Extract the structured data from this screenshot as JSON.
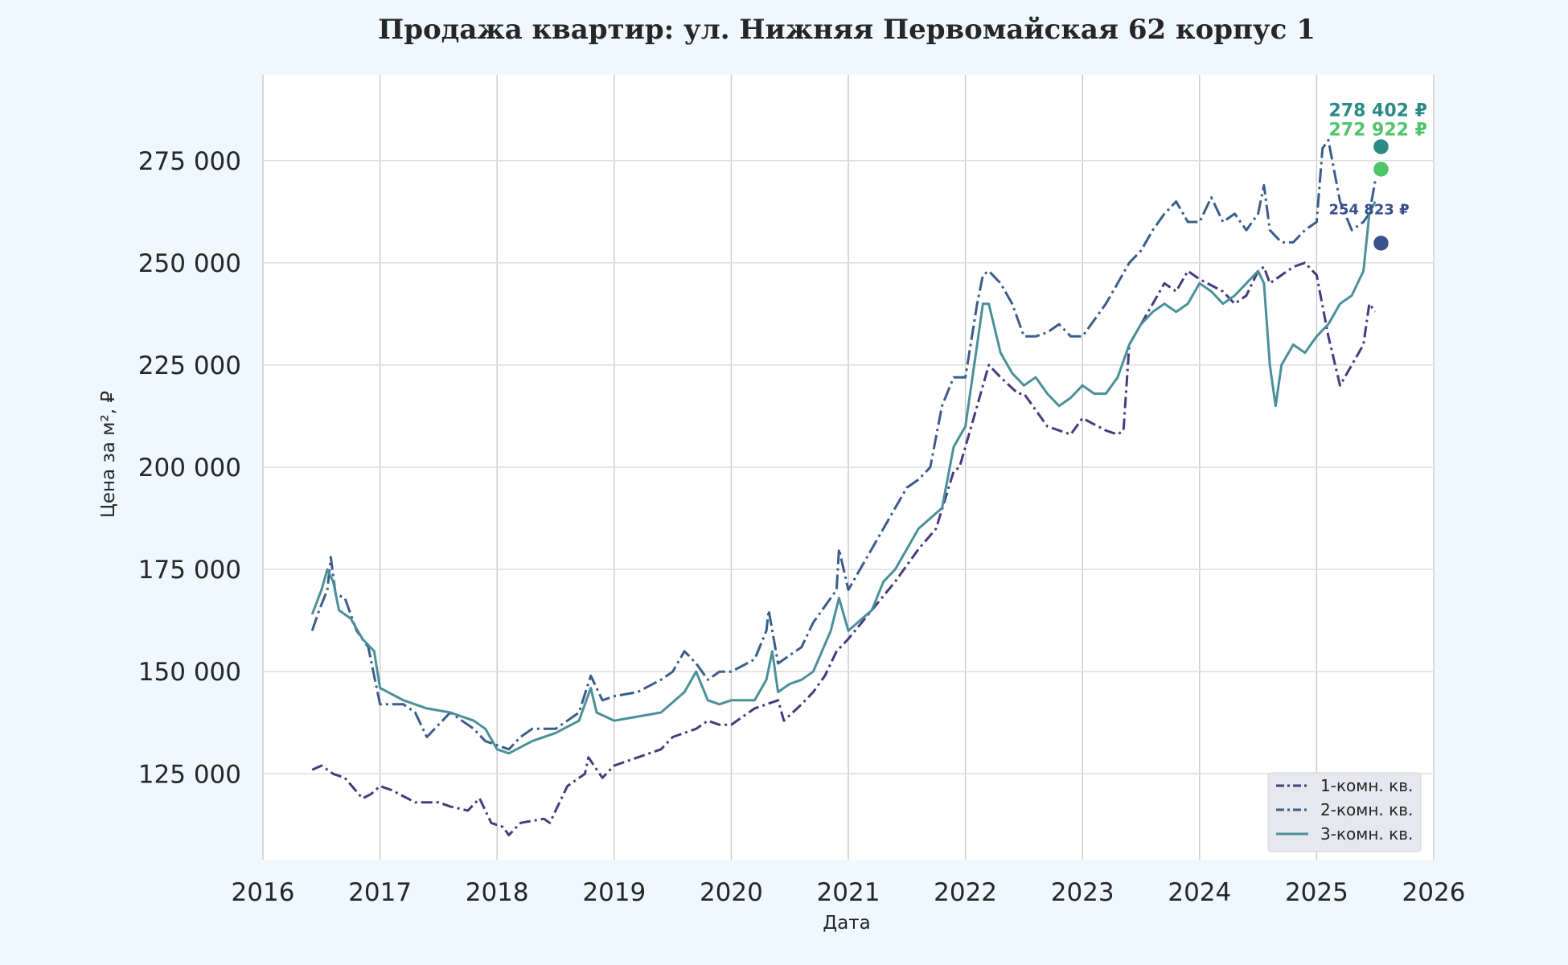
{
  "chart_data": {
    "type": "line",
    "title": "Продажа квартир: ул. Нижняя Первомайская 62 корпус 1",
    "xlabel": "Дата",
    "ylabel": "Цена за м², ₽",
    "xlim": [
      2016.0,
      2026.0
    ],
    "ylim": [
      104000,
      296000
    ],
    "xticks": [
      "2016",
      "2017",
      "2018",
      "2019",
      "2020",
      "2021",
      "2022",
      "2023",
      "2024",
      "2025",
      "2026"
    ],
    "yticks": [
      "125 000",
      "150 000",
      "175 000",
      "200 000",
      "225 000",
      "250 000",
      "275 000"
    ],
    "ytick_values": [
      125000,
      150000,
      175000,
      200000,
      225000,
      250000,
      275000
    ],
    "grid": true,
    "legend_position": "lower-right",
    "series": [
      {
        "name": "1-комн. кв.",
        "color": "#473a7e",
        "dash": "dashdot",
        "x": [
          2016.42,
          2016.5,
          2016.6,
          2016.7,
          2016.85,
          2016.92,
          2017.0,
          2017.1,
          2017.3,
          2017.5,
          2017.6,
          2017.75,
          2017.85,
          2017.95,
          2018.05,
          2018.1,
          2018.2,
          2018.4,
          2018.45,
          2018.5,
          2018.6,
          2018.75,
          2018.78,
          2018.9,
          2019.0,
          2019.2,
          2019.4,
          2019.5,
          2019.6,
          2019.7,
          2019.8,
          2019.9,
          2020.0,
          2020.2,
          2020.4,
          2020.45,
          2020.6,
          2020.7,
          2020.8,
          2020.9,
          2021.0,
          2021.2,
          2021.4,
          2021.6,
          2021.75,
          2021.9,
          2021.95,
          2022.0,
          2022.1,
          2022.2,
          2022.3,
          2022.45,
          2022.5,
          2022.6,
          2022.7,
          2022.9,
          2023.0,
          2023.2,
          2023.3,
          2023.35,
          2023.4,
          2023.5,
          2023.6,
          2023.7,
          2023.8,
          2023.9,
          2024.0,
          2024.2,
          2024.3,
          2024.4,
          2024.5,
          2024.55,
          2024.6,
          2024.7,
          2024.8,
          2024.9,
          2025.0,
          2025.1,
          2025.2,
          2025.3,
          2025.4,
          2025.45,
          2025.5
        ],
        "y": [
          126000,
          127000,
          125000,
          124000,
          119000,
          120000,
          122000,
          121000,
          118000,
          118000,
          117000,
          116000,
          119000,
          113000,
          112000,
          110000,
          113000,
          114000,
          113000,
          116000,
          122000,
          125000,
          129000,
          124000,
          127000,
          129000,
          131000,
          134000,
          135000,
          136000,
          138000,
          137000,
          137000,
          141000,
          143000,
          138000,
          142000,
          145000,
          149000,
          155000,
          158000,
          165000,
          172000,
          180000,
          185000,
          199000,
          200000,
          205000,
          215000,
          225000,
          222000,
          218000,
          218000,
          214000,
          210000,
          208000,
          212000,
          209000,
          208000,
          209000,
          230000,
          235000,
          240000,
          245000,
          243000,
          248000,
          246000,
          243000,
          240000,
          242000,
          248000,
          249000,
          245000,
          247000,
          249000,
          250000,
          247000,
          232000,
          220000,
          225000,
          230000,
          240000,
          238000
        ],
        "last_value": 254823,
        "last_label": "254 823 ₽"
      },
      {
        "name": "2-комн. кв.",
        "color": "#3a5d8a",
        "dash": "dashdotdiamond",
        "x": [
          2016.42,
          2016.48,
          2016.55,
          2016.58,
          2016.62,
          2016.7,
          2016.8,
          2016.9,
          2017.0,
          2017.2,
          2017.3,
          2017.4,
          2017.6,
          2017.7,
          2017.8,
          2017.9,
          2018.0,
          2018.1,
          2018.2,
          2018.3,
          2018.5,
          2018.6,
          2018.7,
          2018.8,
          2018.9,
          2019.0,
          2019.2,
          2019.4,
          2019.5,
          2019.6,
          2019.7,
          2019.8,
          2019.9,
          2020.0,
          2020.2,
          2020.3,
          2020.32,
          2020.4,
          2020.5,
          2020.6,
          2020.7,
          2020.8,
          2020.9,
          2020.92,
          2021.0,
          2021.2,
          2021.4,
          2021.5,
          2021.6,
          2021.7,
          2021.8,
          2021.9,
          2022.0,
          2022.1,
          2022.15,
          2022.2,
          2022.3,
          2022.4,
          2022.5,
          2022.6,
          2022.7,
          2022.8,
          2022.9,
          2023.0,
          2023.1,
          2023.2,
          2023.3,
          2023.4,
          2023.5,
          2023.6,
          2023.7,
          2023.8,
          2023.9,
          2024.0,
          2024.1,
          2024.2,
          2024.3,
          2024.4,
          2024.5,
          2024.55,
          2024.6,
          2024.7,
          2024.8,
          2024.9,
          2025.0,
          2025.05,
          2025.1,
          2025.2,
          2025.3,
          2025.4,
          2025.45,
          2025.5
        ],
        "y": [
          160000,
          165000,
          170000,
          178000,
          169000,
          168000,
          160000,
          156000,
          142000,
          142000,
          140000,
          134000,
          140000,
          138000,
          136000,
          133000,
          132000,
          131000,
          134000,
          136000,
          136000,
          138000,
          140000,
          149000,
          143000,
          144000,
          145000,
          148000,
          150000,
          155000,
          152000,
          148000,
          150000,
          150000,
          153000,
          160000,
          165000,
          152000,
          154000,
          156000,
          162000,
          166000,
          170000,
          180000,
          170000,
          180000,
          190000,
          195000,
          197000,
          200000,
          215000,
          222000,
          222000,
          240000,
          247000,
          248000,
          245000,
          240000,
          232000,
          232000,
          233000,
          235000,
          232000,
          232000,
          236000,
          240000,
          245000,
          250000,
          253000,
          258000,
          262000,
          265000,
          260000,
          260000,
          266000,
          260000,
          262000,
          258000,
          262000,
          269000,
          258000,
          255000,
          255000,
          258000,
          260000,
          278000,
          280000,
          265000,
          258000,
          260000,
          262000,
          270000
        ],
        "last_value": 278402,
        "last_label": "278 402 ₽"
      },
      {
        "name": "3-комн. кв.",
        "color": "#4a9099",
        "dash": "solid",
        "x": [
          2016.42,
          2016.5,
          2016.55,
          2016.6,
          2016.65,
          2016.75,
          2016.85,
          2016.95,
          2017.0,
          2017.2,
          2017.4,
          2017.6,
          2017.8,
          2017.9,
          2018.0,
          2018.1,
          2018.3,
          2018.5,
          2018.7,
          2018.8,
          2018.85,
          2019.0,
          2019.2,
          2019.4,
          2019.6,
          2019.7,
          2019.8,
          2019.9,
          2020.0,
          2020.2,
          2020.3,
          2020.35,
          2020.4,
          2020.5,
          2020.6,
          2020.7,
          2020.85,
          2020.92,
          2021.0,
          2021.2,
          2021.3,
          2021.4,
          2021.5,
          2021.6,
          2021.8,
          2021.9,
          2022.0,
          2022.1,
          2022.15,
          2022.2,
          2022.3,
          2022.4,
          2022.5,
          2022.6,
          2022.7,
          2022.8,
          2022.9,
          2023.0,
          2023.1,
          2023.2,
          2023.3,
          2023.4,
          2023.5,
          2023.6,
          2023.7,
          2023.8,
          2023.9,
          2024.0,
          2024.1,
          2024.2,
          2024.3,
          2024.4,
          2024.5,
          2024.55,
          2024.6,
          2024.65,
          2024.7,
          2024.8,
          2024.9,
          2025.0,
          2025.1,
          2025.2,
          2025.3,
          2025.4,
          2025.45,
          2025.5
        ],
        "y": [
          164000,
          170000,
          175000,
          172000,
          165000,
          163000,
          158000,
          155000,
          146000,
          143000,
          141000,
          140000,
          138000,
          136000,
          131000,
          130000,
          133000,
          135000,
          138000,
          146000,
          140000,
          138000,
          139000,
          140000,
          145000,
          150000,
          143000,
          142000,
          143000,
          143000,
          148000,
          155000,
          145000,
          147000,
          148000,
          150000,
          160000,
          168000,
          160000,
          165000,
          172000,
          175000,
          180000,
          185000,
          190000,
          205000,
          210000,
          230000,
          240000,
          240000,
          228000,
          223000,
          220000,
          222000,
          218000,
          215000,
          217000,
          220000,
          218000,
          218000,
          222000,
          230000,
          235000,
          238000,
          240000,
          238000,
          240000,
          245000,
          243000,
          240000,
          242000,
          245000,
          248000,
          245000,
          225000,
          215000,
          225000,
          230000,
          228000,
          232000,
          235000,
          240000,
          242000,
          248000,
          262000,
          265000
        ],
        "last_value": 272922,
        "last_label": "272 922 ₽"
      }
    ],
    "end_markers": [
      {
        "x": 2025.55,
        "y": 278402,
        "color": "#2a8a86",
        "label": "278 402 ₽"
      },
      {
        "x": 2025.55,
        "y": 272922,
        "color": "#4fc46a",
        "label": "272 922 ₽"
      },
      {
        "x": 2025.55,
        "y": 254823,
        "color": "#3b4f8a",
        "label": "254 823 ₽"
      }
    ]
  }
}
